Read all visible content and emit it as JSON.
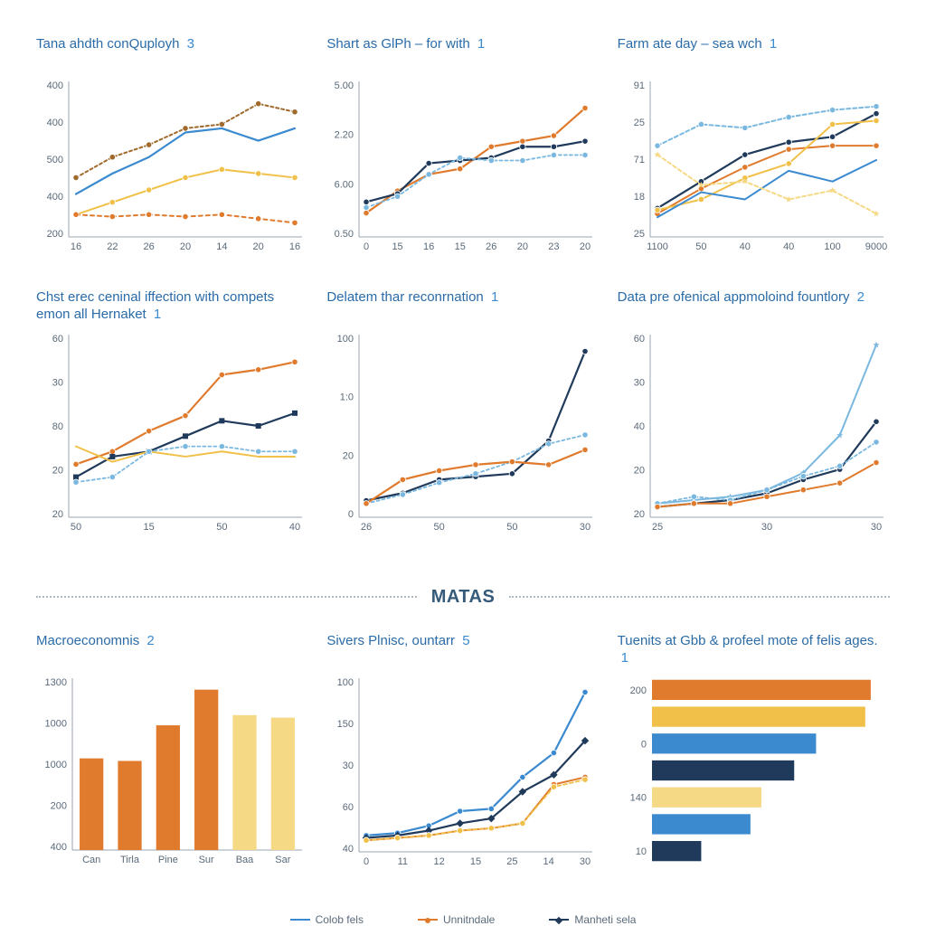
{
  "palette": {
    "blue": "#3b8ad0",
    "navy": "#1f3a5a",
    "orange": "#e07a2c",
    "yellow": "#f0c048",
    "paleyellow": "#f5d985",
    "brown": "#a06a2c",
    "lightblue": "#7ab8e0",
    "axis": "#8a95a0",
    "text": "#2a6ba8"
  },
  "section_label": "MATAS",
  "legend": [
    {
      "label": "Colob fels",
      "color": "#3b8ad0",
      "marker": "line"
    },
    {
      "label": "Unnitndale",
      "color": "#e07a2c",
      "marker": "dot"
    },
    {
      "label": "Manheti sela",
      "color": "#1f3a5a",
      "marker": "diamond"
    }
  ],
  "panels": [
    {
      "id": "p1",
      "type": "line",
      "title": "Tana ahdth conQuployh",
      "badge": "3",
      "x_ticks": [
        "16",
        "22",
        "26",
        "20",
        "14",
        "20",
        "16"
      ],
      "y_ticks": [
        "400",
        "400",
        "500",
        "400",
        "200"
      ],
      "xlim": [
        0,
        6
      ],
      "ylim": [
        150,
        520
      ],
      "series": [
        {
          "color": "#a06a2c",
          "dash": "3,3",
          "width": 2,
          "marker": "dot",
          "y": [
            290,
            340,
            370,
            410,
            420,
            470,
            450
          ]
        },
        {
          "color": "#3b8ad0",
          "dash": "",
          "width": 2.2,
          "marker": "none",
          "y": [
            250,
            300,
            340,
            400,
            410,
            380,
            410
          ]
        },
        {
          "color": "#f0c048",
          "dash": "",
          "width": 2,
          "marker": "dot",
          "y": [
            200,
            230,
            260,
            290,
            310,
            300,
            290
          ]
        },
        {
          "color": "#e07a2c",
          "dash": "4,4",
          "width": 2,
          "marker": "dot",
          "y": [
            200,
            195,
            200,
            195,
            200,
            190,
            180
          ]
        }
      ]
    },
    {
      "id": "p2",
      "type": "line",
      "title": "Shart as GlPh – for with",
      "badge": "1",
      "x_ticks": [
        "0",
        "15",
        "16",
        "15",
        "26",
        "20",
        "23",
        "20"
      ],
      "y_ticks": [
        "5.00",
        "2.20",
        "6.00",
        "0.50"
      ],
      "xlim": [
        0,
        7
      ],
      "ylim": [
        0,
        5.5
      ],
      "series": [
        {
          "color": "#e07a2c",
          "dash": "",
          "width": 2.2,
          "marker": "dot",
          "y": [
            0.8,
            1.6,
            2.2,
            2.4,
            3.2,
            3.4,
            3.6,
            4.6
          ]
        },
        {
          "color": "#1f3a5a",
          "dash": "",
          "width": 2.2,
          "marker": "dot",
          "y": [
            1.2,
            1.5,
            2.6,
            2.7,
            2.8,
            3.2,
            3.2,
            3.4
          ]
        },
        {
          "color": "#7ab8e0",
          "dash": "3,3",
          "width": 1.8,
          "marker": "dot",
          "y": [
            1.0,
            1.4,
            2.2,
            2.8,
            2.7,
            2.7,
            2.9,
            2.9
          ]
        }
      ]
    },
    {
      "id": "p3",
      "type": "line",
      "title": "Farm ate day – sea wch",
      "badge": "1",
      "x_ticks": [
        "1100",
        "50",
        "40",
        "40",
        "100",
        "9000"
      ],
      "y_ticks": [
        "91",
        "25",
        "71",
        "18",
        "25"
      ],
      "xlim": [
        0,
        5
      ],
      "ylim": [
        10,
        95
      ],
      "series": [
        {
          "color": "#7ab8e0",
          "dash": "4,3",
          "width": 2,
          "marker": "dot",
          "y": [
            60,
            72,
            70,
            76,
            80,
            82
          ]
        },
        {
          "color": "#1f3a5a",
          "dash": "",
          "width": 2.2,
          "marker": "dot",
          "y": [
            25,
            40,
            55,
            62,
            65,
            78
          ]
        },
        {
          "color": "#e07a2c",
          "dash": "",
          "width": 2,
          "marker": "dot",
          "y": [
            22,
            36,
            48,
            58,
            60,
            60
          ]
        },
        {
          "color": "#f0c048",
          "dash": "",
          "width": 2,
          "marker": "dot",
          "y": [
            24,
            30,
            42,
            50,
            72,
            74
          ]
        },
        {
          "color": "#3b8ad0",
          "dash": "",
          "width": 2,
          "marker": "none",
          "y": [
            20,
            34,
            30,
            46,
            40,
            52
          ]
        },
        {
          "color": "#f5d985",
          "dash": "4,3",
          "width": 2,
          "marker": "star",
          "y": [
            55,
            38,
            40,
            30,
            35,
            22
          ]
        }
      ]
    },
    {
      "id": "p4",
      "type": "line",
      "title": "Chst erec ceninal iffection with compets emon all Hernaket",
      "badge": "1",
      "x_ticks": [
        "50",
        "15",
        "50",
        "40"
      ],
      "y_ticks": [
        "60",
        "30",
        "80",
        "20",
        "20"
      ],
      "xlim": [
        0,
        5
      ],
      "ylim": [
        15,
        85
      ],
      "series": [
        {
          "color": "#e07a2c",
          "dash": "",
          "width": 2.2,
          "marker": "dot",
          "y": [
            35,
            40,
            48,
            54,
            70,
            72,
            75
          ]
        },
        {
          "color": "#1f3a5a",
          "dash": "",
          "width": 2.2,
          "marker": "square",
          "y": [
            30,
            38,
            40,
            46,
            52,
            50,
            55
          ]
        },
        {
          "color": "#f0c048",
          "dash": "",
          "width": 2,
          "marker": "none",
          "y": [
            42,
            36,
            40,
            38,
            40,
            38,
            38
          ]
        },
        {
          "color": "#7ab8e0",
          "dash": "3,3",
          "width": 1.8,
          "marker": "dot",
          "y": [
            28,
            30,
            40,
            42,
            42,
            40,
            40
          ]
        }
      ]
    },
    {
      "id": "p5",
      "type": "line",
      "title": "Delatem thar reconrnation",
      "badge": "1",
      "x_ticks": [
        "26",
        "50",
        "50",
        "30"
      ],
      "y_ticks": [
        "100",
        "1:0",
        "20",
        "0"
      ],
      "xlim": [
        0,
        6
      ],
      "ylim": [
        0,
        120
      ],
      "series": [
        {
          "color": "#1f3a5a",
          "dash": "",
          "width": 2.2,
          "marker": "dot",
          "y": [
            10,
            15,
            24,
            26,
            28,
            50,
            110
          ]
        },
        {
          "color": "#7ab8e0",
          "dash": "3,3",
          "width": 1.8,
          "marker": "dot",
          "y": [
            8,
            14,
            22,
            28,
            36,
            48,
            54
          ]
        },
        {
          "color": "#e07a2c",
          "dash": "",
          "width": 2.2,
          "marker": "dot",
          "y": [
            8,
            24,
            30,
            34,
            36,
            34,
            44
          ]
        }
      ]
    },
    {
      "id": "p6",
      "type": "line",
      "title": "Data pre ofenical appmoloind fountlory",
      "badge": "2",
      "x_ticks": [
        "25",
        "30",
        "30"
      ],
      "y_ticks": [
        "60",
        "30",
        "40",
        "20",
        "20"
      ],
      "xlim": [
        0,
        6
      ],
      "ylim": [
        15,
        120
      ],
      "series": [
        {
          "color": "#7ab8e0",
          "dash": "",
          "width": 2,
          "marker": "star",
          "y": [
            22,
            24,
            26,
            30,
            40,
            62,
            115
          ]
        },
        {
          "color": "#1f3a5a",
          "dash": "",
          "width": 2.2,
          "marker": "dot",
          "y": [
            20,
            22,
            24,
            28,
            36,
            42,
            70
          ]
        },
        {
          "color": "#7ab8e0",
          "dash": "3,3",
          "width": 1.8,
          "marker": "dot",
          "y": [
            22,
            26,
            24,
            30,
            38,
            44,
            58
          ]
        },
        {
          "color": "#e07a2c",
          "dash": "",
          "width": 2,
          "marker": "dot",
          "y": [
            20,
            22,
            22,
            26,
            30,
            34,
            46
          ]
        }
      ]
    },
    {
      "id": "p7",
      "type": "bar",
      "title": "Macroeconomnis",
      "badge": "2",
      "x_ticks": [
        "Can",
        "Tirla",
        "Pine",
        "Sur",
        "Baa",
        "Sar"
      ],
      "y_ticks": [
        "1300",
        "1000",
        "1000",
        "200",
        "400"
      ],
      "ylim": [
        0,
        1350
      ],
      "bar_width": 0.62,
      "bars": [
        {
          "label": "Can",
          "value": 720,
          "color": "#e07a2c"
        },
        {
          "label": "Tirla",
          "value": 700,
          "color": "#e07a2c"
        },
        {
          "label": "Pine",
          "value": 980,
          "color": "#e07a2c"
        },
        {
          "label": "Sur",
          "value": 1260,
          "color": "#e07a2c"
        },
        {
          "label": "Baa",
          "value": 1060,
          "color": "#f5d985"
        },
        {
          "label": "Sar",
          "value": 1040,
          "color": "#f5d985"
        }
      ]
    },
    {
      "id": "p8",
      "type": "line",
      "title": "Sivers Plnisc, ountarr",
      "badge": "5",
      "x_ticks": [
        "0",
        "11",
        "12",
        "15",
        "25",
        "14",
        "30"
      ],
      "y_ticks": [
        "100",
        "150",
        "30",
        "60",
        "40"
      ],
      "xlim": [
        0,
        7
      ],
      "ylim": [
        30,
        170
      ],
      "series": [
        {
          "color": "#3b8ad0",
          "dash": "",
          "width": 2.2,
          "marker": "dot",
          "y": [
            42,
            44,
            50,
            62,
            64,
            90,
            110,
            160
          ]
        },
        {
          "color": "#1f3a5a",
          "dash": "",
          "width": 2.2,
          "marker": "diamond",
          "y": [
            40,
            42,
            46,
            52,
            56,
            78,
            92,
            120
          ]
        },
        {
          "color": "#e07a2c",
          "dash": "",
          "width": 2,
          "marker": "dot",
          "y": [
            38,
            40,
            42,
            46,
            48,
            52,
            84,
            90
          ]
        },
        {
          "color": "#f0c048",
          "dash": "4,3",
          "width": 1.8,
          "marker": "dot",
          "y": [
            38,
            40,
            42,
            46,
            48,
            52,
            82,
            88
          ]
        }
      ]
    },
    {
      "id": "p9",
      "type": "hbar",
      "title": "Tuenits at Gbb & profeel mote of felis ages.",
      "badge": "1",
      "y_ticks": [
        "200",
        "0",
        "140",
        "10"
      ],
      "xlim": [
        0,
        210
      ],
      "bar_height": 0.75,
      "bars": [
        {
          "value": 200,
          "color": "#e07a2c"
        },
        {
          "value": 195,
          "color": "#f0c048"
        },
        {
          "value": 150,
          "color": "#3b8ad0"
        },
        {
          "value": 130,
          "color": "#1f3a5a"
        },
        {
          "value": 100,
          "color": "#f5d985"
        },
        {
          "value": 90,
          "color": "#3b8ad0"
        },
        {
          "value": 45,
          "color": "#1f3a5a"
        }
      ]
    }
  ]
}
